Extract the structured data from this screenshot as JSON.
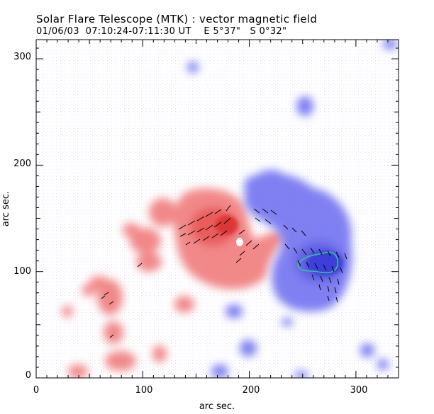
{
  "header": {
    "title": "Solar Flare Telescope (MTK) : vector magnetic field",
    "subtitle": "01/06/03  07:10:24-07:11:30 UT    E 5°37\"   S 0°32\""
  },
  "axes": {
    "xlabel": "arc sec.",
    "ylabel": "arc sec.",
    "xlim": [
      0,
      340
    ],
    "ylim": [
      0,
      318
    ],
    "x_ticks": [
      0,
      100,
      200,
      300
    ],
    "y_ticks": [
      0,
      100,
      200,
      300
    ],
    "x_ticks_display": [
      "0",
      "100",
      "200",
      "300"
    ],
    "y_ticks_display": [
      "0",
      "100",
      "200",
      "300"
    ]
  },
  "legend_colors": {
    "positive_polarity": "#f06464",
    "negative_polarity": "#6464e6",
    "vectors": "#000000",
    "contour": "#2ec4a0"
  }
}
